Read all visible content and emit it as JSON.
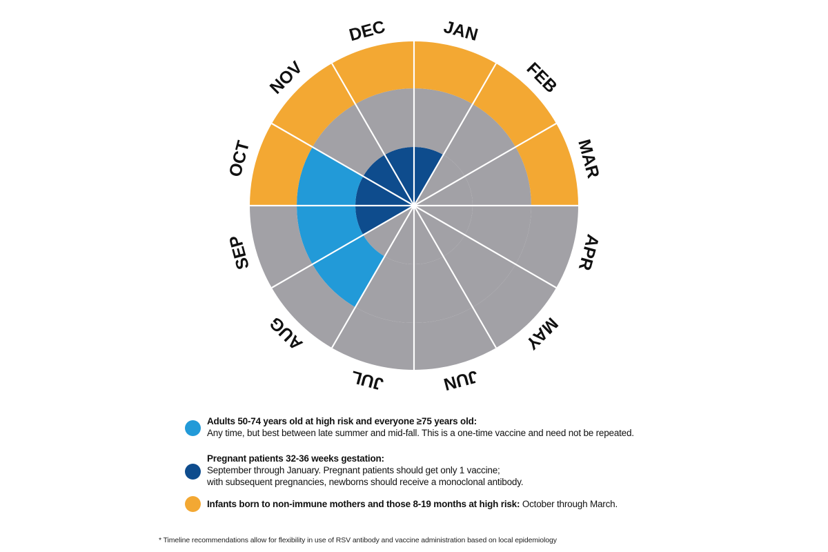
{
  "chart_data": {
    "type": "radial-timeline",
    "title": "",
    "months": [
      "JAN",
      "FEB",
      "MAR",
      "APR",
      "MAY",
      "JUN",
      "JUL",
      "AUG",
      "SEP",
      "OCT",
      "NOV",
      "DEC"
    ],
    "rings": [
      {
        "name": "Infants born to non-immune mothers and those 8-19 months at high risk",
        "ring": "outer",
        "color": "#F3A833",
        "months": [
          "OCT",
          "NOV",
          "DEC",
          "JAN",
          "FEB",
          "MAR"
        ]
      },
      {
        "name": "Adults 50-74 years old at high risk and everyone ≥75 years old",
        "ring": "middle",
        "color": "#229AD8",
        "months": [
          "AUG",
          "SEP",
          "OCT"
        ]
      },
      {
        "name": "Pregnant patients 32-36 weeks gestation",
        "ring": "inner",
        "color": "#0E4C8D",
        "months": [
          "SEP",
          "OCT",
          "NOV",
          "DEC",
          "JAN"
        ]
      }
    ],
    "background_color": "#A2A1A6",
    "grid": true,
    "legend_position": "bottom"
  },
  "colors": {
    "orange": "#F3A833",
    "light_blue": "#229AD8",
    "dark_blue": "#0E4C8D",
    "gray": "#A2A1A6"
  },
  "legend": [
    {
      "title": "Adults 50-74 years old at high risk and everyone ≥75 years old:",
      "desc": "Any time, but best between late summer and mid-fall.  This is a one-time vaccine and need not be repeated.",
      "color": "#229AD8"
    },
    {
      "title": "Pregnant patients 32-36 weeks gestation:",
      "desc1": "September through January.  Pregnant patients should get only 1 vaccine;",
      "desc2": "with subsequent pregnancies, newborns should receive a monoclonal antibody.",
      "color": "#0E4C8D"
    },
    {
      "title": "Infants born to non-immune mothers and those 8-19 months at high risk:",
      "desc": " October through March.",
      "color": "#F3A833"
    }
  ],
  "footnote": "* Timeline recommendations allow for flexibility in use of RSV antibody and vaccine administration based on local epidemiology"
}
